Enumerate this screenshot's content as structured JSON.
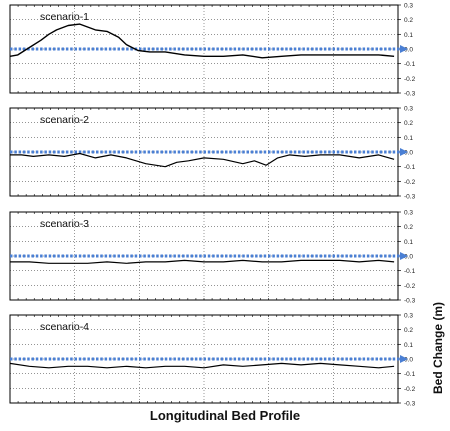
{
  "chart_data": [
    {
      "type": "line",
      "title": "scenario-1",
      "ylim": [
        -0.3,
        0.3
      ],
      "yticks": [
        "0.3",
        "0.2",
        "0.1",
        "0.0",
        "-0.1",
        "-0.2",
        "-0.3"
      ],
      "xlim": [
        0,
        10
      ],
      "reference_line": 0.0,
      "series": [
        {
          "x": [
            0.0,
            0.2,
            0.5,
            0.8,
            1.0,
            1.2,
            1.5,
            1.8,
            2.0,
            2.2,
            2.5,
            2.8,
            3.0,
            3.3,
            3.6,
            4.0,
            4.5,
            5.0,
            5.5,
            6.0,
            6.5,
            7.0,
            7.5,
            8.0,
            8.5,
            9.0,
            9.5,
            9.9
          ],
          "y": [
            -0.05,
            -0.04,
            0.01,
            0.06,
            0.1,
            0.13,
            0.16,
            0.17,
            0.15,
            0.13,
            0.12,
            0.08,
            0.03,
            -0.01,
            -0.02,
            -0.02,
            -0.04,
            -0.05,
            -0.05,
            -0.04,
            -0.06,
            -0.05,
            -0.04,
            -0.04,
            -0.04,
            -0.04,
            -0.04,
            -0.05
          ]
        }
      ]
    },
    {
      "type": "line",
      "title": "scenario-2",
      "ylim": [
        -0.3,
        0.3
      ],
      "yticks": [
        "0.3",
        "0.2",
        "0.1",
        "0.0",
        "-0.1",
        "-0.2",
        "-0.3"
      ],
      "xlim": [
        0,
        10
      ],
      "reference_line": 0.0,
      "series": [
        {
          "x": [
            0.0,
            0.3,
            0.6,
            1.0,
            1.4,
            1.8,
            2.2,
            2.6,
            3.0,
            3.5,
            4.0,
            4.3,
            4.6,
            5.0,
            5.5,
            6.0,
            6.3,
            6.6,
            6.9,
            7.2,
            7.6,
            8.0,
            8.5,
            9.0,
            9.5,
            9.9
          ],
          "y": [
            -0.02,
            -0.02,
            -0.03,
            -0.02,
            -0.03,
            -0.01,
            -0.04,
            -0.02,
            -0.04,
            -0.08,
            -0.1,
            -0.07,
            -0.06,
            -0.04,
            -0.05,
            -0.08,
            -0.06,
            -0.09,
            -0.04,
            -0.02,
            -0.03,
            -0.02,
            -0.02,
            -0.04,
            -0.02,
            -0.05
          ]
        }
      ]
    },
    {
      "type": "line",
      "title": "scenario-3",
      "ylim": [
        -0.3,
        0.3
      ],
      "yticks": [
        "0.3",
        "0.2",
        "0.1",
        "0.0",
        "-0.1",
        "-0.2",
        "-0.3"
      ],
      "xlim": [
        0,
        10
      ],
      "reference_line": 0.0,
      "series": [
        {
          "x": [
            0.0,
            0.5,
            1.0,
            1.5,
            2.0,
            2.5,
            3.0,
            3.5,
            4.0,
            4.5,
            5.0,
            5.5,
            6.0,
            6.5,
            7.0,
            7.5,
            8.0,
            8.5,
            9.0,
            9.5,
            9.9
          ],
          "y": [
            -0.04,
            -0.04,
            -0.05,
            -0.05,
            -0.05,
            -0.04,
            -0.05,
            -0.04,
            -0.04,
            -0.03,
            -0.04,
            -0.04,
            -0.03,
            -0.04,
            -0.04,
            -0.03,
            -0.03,
            -0.03,
            -0.04,
            -0.03,
            -0.04
          ]
        }
      ]
    },
    {
      "type": "line",
      "title": "scenario-4",
      "ylim": [
        -0.3,
        0.3
      ],
      "yticks": [
        "0.3",
        "0.2",
        "0.1",
        "0.0",
        "-0.1",
        "-0.2",
        "-0.3"
      ],
      "xlim": [
        0,
        10
      ],
      "reference_line": 0.0,
      "series": [
        {
          "x": [
            0.0,
            0.5,
            1.0,
            1.5,
            2.0,
            2.5,
            3.0,
            3.5,
            4.0,
            4.5,
            5.0,
            5.5,
            6.0,
            6.5,
            7.0,
            7.5,
            8.0,
            8.5,
            9.0,
            9.5,
            9.9
          ],
          "y": [
            -0.03,
            -0.05,
            -0.06,
            -0.05,
            -0.05,
            -0.06,
            -0.05,
            -0.06,
            -0.05,
            -0.05,
            -0.06,
            -0.04,
            -0.05,
            -0.04,
            -0.03,
            -0.04,
            -0.03,
            -0.04,
            -0.05,
            -0.06,
            -0.05
          ]
        }
      ]
    }
  ],
  "xlabel": "Longitudinal Bed Profile",
  "ylabel": "Bed Change (m)",
  "colors": {
    "data_line": "#000000",
    "reference_line": "#4a7fd4",
    "grid": "#555555",
    "frame": "#000000"
  }
}
